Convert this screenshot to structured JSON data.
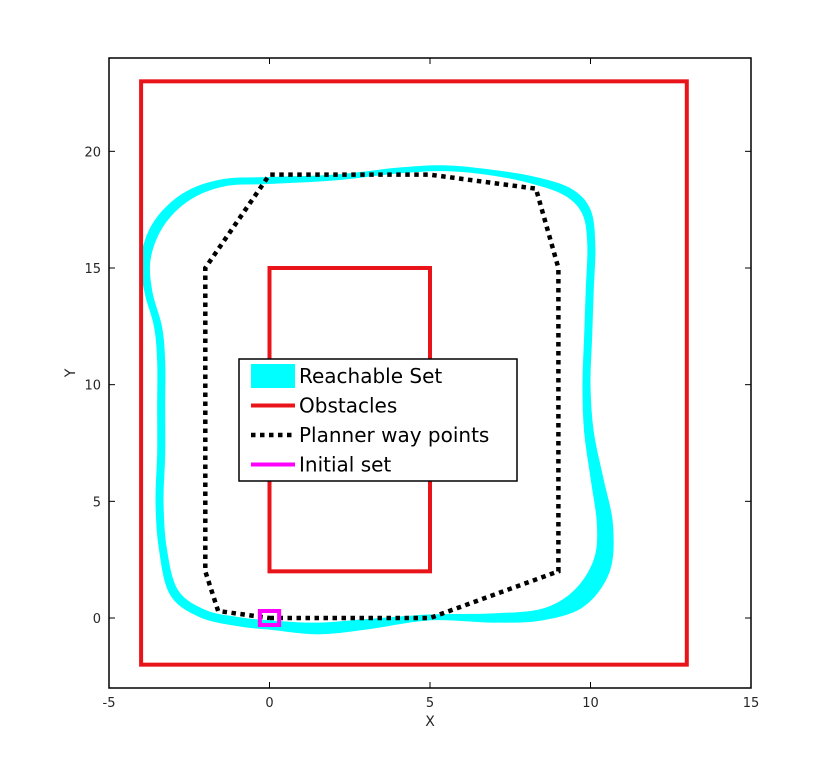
{
  "chart_data": {
    "type": "line",
    "title": "",
    "xlabel": "X",
    "ylabel": "Y",
    "xlim": [
      -5,
      15
    ],
    "ylim": [
      -3,
      24
    ],
    "xticks": [
      -5,
      0,
      5,
      10,
      15
    ],
    "yticks": [
      0,
      5,
      10,
      15,
      20
    ],
    "grid": false,
    "legend_position": "center-left",
    "series": [
      {
        "name": "Reachable Set",
        "kind": "band",
        "color": "#00ffff",
        "outer": [
          [
            0,
            -0.5
          ],
          [
            1.5,
            -0.7
          ],
          [
            3,
            -0.5
          ],
          [
            5,
            -0.1
          ],
          [
            7,
            -0.2
          ],
          [
            8.5,
            -0.1
          ],
          [
            9.8,
            0.5
          ],
          [
            10.6,
            2
          ],
          [
            10.7,
            4
          ],
          [
            10.4,
            6
          ],
          [
            10.1,
            8
          ],
          [
            10,
            10
          ],
          [
            10.05,
            12
          ],
          [
            10.1,
            14
          ],
          [
            10.15,
            16
          ],
          [
            10,
            17.5
          ],
          [
            9.4,
            18.4
          ],
          [
            8.3,
            18.9
          ],
          [
            7,
            19.2
          ],
          [
            5.5,
            19.4
          ],
          [
            4,
            19.3
          ],
          [
            2,
            19.0
          ],
          [
            0,
            18.9
          ],
          [
            -1.5,
            18.8
          ],
          [
            -2.7,
            18.2
          ],
          [
            -3.6,
            17
          ],
          [
            -4.0,
            15.5
          ],
          [
            -3.9,
            14
          ],
          [
            -3.6,
            12.5
          ],
          [
            -3.5,
            11
          ],
          [
            -3.5,
            9
          ],
          [
            -3.5,
            7
          ],
          [
            -3.55,
            5
          ],
          [
            -3.45,
            3
          ],
          [
            -3.1,
            1
          ],
          [
            -2.2,
            0.05
          ],
          [
            -1,
            -0.35
          ]
        ],
        "inner": [
          [
            0,
            -0.1
          ],
          [
            1.5,
            -0.2
          ],
          [
            3,
            -0.05
          ],
          [
            5,
            0.15
          ],
          [
            7,
            0.2
          ],
          [
            8.5,
            0.4
          ],
          [
            9.5,
            1.2
          ],
          [
            10.1,
            2.5
          ],
          [
            10.2,
            4
          ],
          [
            10.0,
            6
          ],
          [
            9.8,
            8
          ],
          [
            9.75,
            10
          ],
          [
            9.8,
            12
          ],
          [
            9.85,
            14
          ],
          [
            9.9,
            16
          ],
          [
            9.75,
            17.3
          ],
          [
            9.2,
            18.1
          ],
          [
            8.2,
            18.6
          ],
          [
            7,
            18.95
          ],
          [
            5.5,
            19.15
          ],
          [
            4,
            19.05
          ],
          [
            2,
            18.75
          ],
          [
            0,
            18.6
          ],
          [
            -1.4,
            18.5
          ],
          [
            -2.5,
            17.9
          ],
          [
            -3.3,
            16.8
          ],
          [
            -3.7,
            15.4
          ],
          [
            -3.65,
            14
          ],
          [
            -3.35,
            12.5
          ],
          [
            -3.25,
            11
          ],
          [
            -3.25,
            9
          ],
          [
            -3.25,
            7
          ],
          [
            -3.3,
            5
          ],
          [
            -3.2,
            3
          ],
          [
            -2.85,
            1.2
          ],
          [
            -2.0,
            0.35
          ],
          [
            -1,
            0.05
          ]
        ]
      },
      {
        "name": "Obstacles",
        "kind": "rectangles",
        "color": "#e8141a",
        "rects": [
          {
            "x0": -4,
            "y0": -2,
            "x1": 13,
            "y1": 23
          },
          {
            "x0": 0,
            "y0": 2,
            "x1": 5,
            "y1": 15
          }
        ]
      },
      {
        "name": "Planner way points",
        "kind": "dotted-line",
        "color": "#000000",
        "x": [
          0,
          5,
          9,
          9,
          8.3,
          5,
          0,
          -2,
          -2,
          -1.6,
          0
        ],
        "y": [
          0,
          0,
          2,
          15,
          18.4,
          19,
          19,
          15,
          2,
          0.3,
          0
        ]
      },
      {
        "name": "Initial set",
        "kind": "rectangle",
        "color": "#ff00ff",
        "rect": {
          "x0": -0.3,
          "y0": -0.3,
          "x1": 0.3,
          "y1": 0.3
        }
      }
    ],
    "legend": [
      "Reachable Set",
      "Obstacles",
      "Planner way points",
      "Initial set"
    ]
  }
}
